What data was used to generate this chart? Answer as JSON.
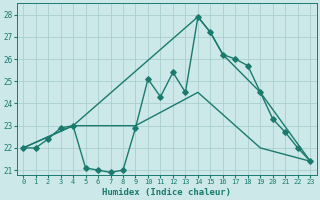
{
  "xlabel": "Humidex (Indice chaleur)",
  "bg_color": "#cce8e8",
  "line_color": "#1a7a6e",
  "grid_color": "#aacfcf",
  "xlim": [
    -0.5,
    23.5
  ],
  "ylim": [
    20.8,
    28.5
  ],
  "yticks": [
    21,
    22,
    23,
    24,
    25,
    26,
    27,
    28
  ],
  "xticks": [
    0,
    1,
    2,
    3,
    4,
    5,
    6,
    7,
    8,
    9,
    10,
    11,
    12,
    13,
    14,
    15,
    16,
    17,
    18,
    19,
    20,
    21,
    22,
    23
  ],
  "series1_x": [
    0,
    1,
    2,
    3,
    4,
    5,
    6,
    7,
    8,
    9,
    10,
    11,
    12,
    13,
    14,
    15,
    16,
    17,
    18,
    19,
    20,
    21,
    22,
    23
  ],
  "series1_y": [
    22.0,
    22.0,
    22.4,
    22.9,
    23.0,
    21.1,
    21.0,
    20.9,
    21.0,
    22.9,
    25.1,
    24.3,
    25.4,
    24.5,
    27.9,
    27.2,
    26.2,
    26.0,
    25.7,
    24.5,
    23.3,
    22.7,
    22.0,
    21.4
  ],
  "series2_x": [
    0,
    4,
    14,
    15,
    16,
    19,
    23
  ],
  "series2_y": [
    22.0,
    23.0,
    27.9,
    27.2,
    26.2,
    24.5,
    21.4
  ],
  "series3_x": [
    0,
    4,
    9,
    14,
    19,
    23
  ],
  "series3_y": [
    22.0,
    23.0,
    23.0,
    24.5,
    22.0,
    21.4
  ],
  "markersize": 2.8,
  "linewidth": 1.0
}
